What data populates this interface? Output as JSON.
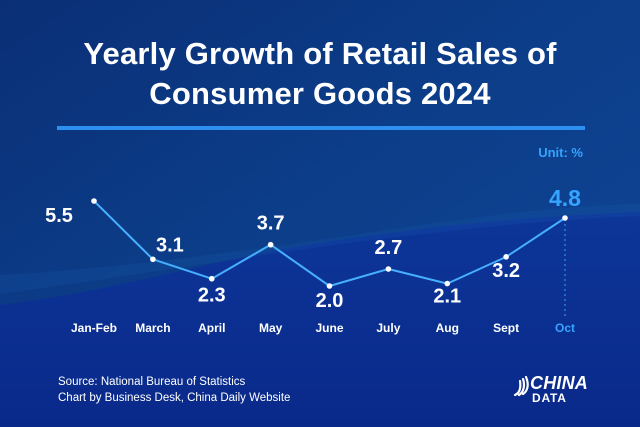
{
  "header": {
    "title_line1": "Yearly Growth of Retail Sales of",
    "title_line2": "Consumer Goods 2024",
    "unit": "Unit: %"
  },
  "footer": {
    "source": "Source: National Bureau of Statistics",
    "credit": "Chart by Business Desk, China Daily Website"
  },
  "logo": {
    "line1": "CHINA",
    "line2": "DATA"
  },
  "colors": {
    "background": "#0d3f86",
    "lower_band": "#0c2f8f",
    "accent": "#35a4ff",
    "line": "#46b0ff",
    "white": "#ffffff"
  },
  "chart_data": {
    "type": "line",
    "title": "Yearly Growth of Retail Sales of Consumer Goods 2024",
    "unit": "%",
    "categories": [
      "Jan-Feb",
      "March",
      "April",
      "May",
      "June",
      "July",
      "Aug",
      "Sept",
      "Oct"
    ],
    "values": [
      5.5,
      3.1,
      2.3,
      3.7,
      2.0,
      2.7,
      2.1,
      3.2,
      4.8
    ],
    "value_labels": [
      "5.5",
      "3.1",
      "2.3",
      "3.7",
      "2.0",
      "2.7",
      "2.1",
      "3.2",
      "4.8"
    ],
    "highlighted_category": "Oct",
    "ylim": [
      2.0,
      5.5
    ],
    "xlabel": "",
    "ylabel": "",
    "grid": false,
    "legend": "none"
  }
}
